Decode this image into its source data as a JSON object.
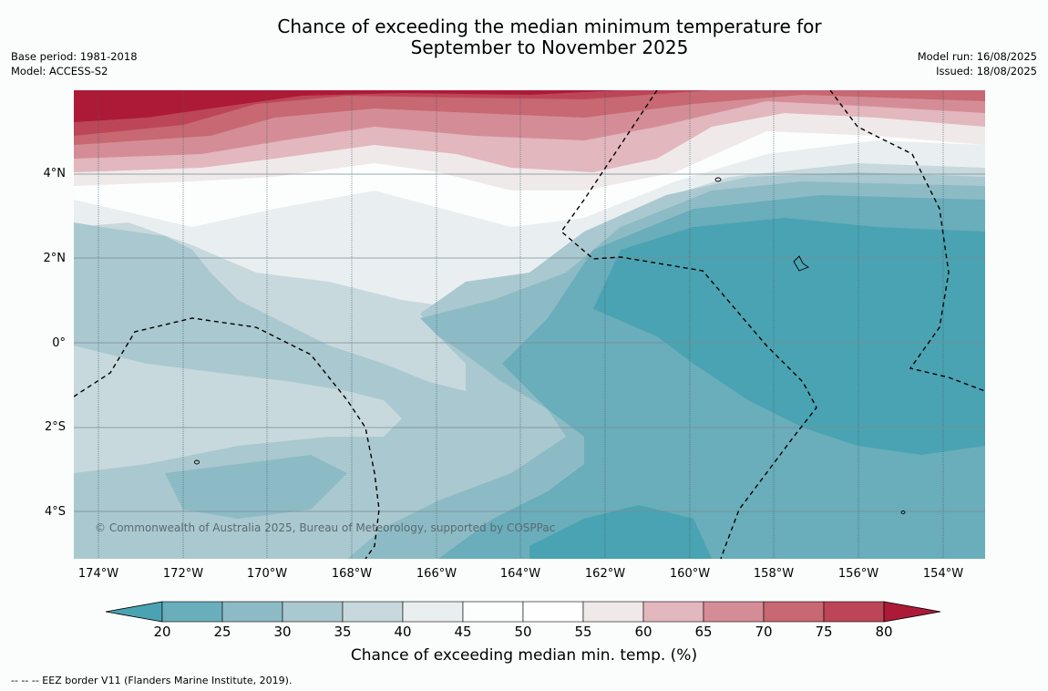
{
  "title_line1": "Chance of exceeding the median minimum temperature for",
  "title_line2": "September to November 2025",
  "base_period": "Base period: 1981-2018",
  "model": "Model: ACCESS-S2",
  "model_run": "Model run: 16/08/2025",
  "issued": "Issued: 18/08/2025",
  "lat_labels": [
    "4°N",
    "2°N",
    "0°",
    "2°S",
    "4°S"
  ],
  "lon_labels": [
    "174°W",
    "172°W",
    "170°W",
    "168°W",
    "166°W",
    "164°W",
    "162°W",
    "160°W",
    "158°W",
    "156°W",
    "154°W"
  ],
  "copyright": "© Commonwealth of Australia 2025, Bureau of Meteorology, supported by COSPPac",
  "colorbar": {
    "ticks": [
      "20",
      "25",
      "30",
      "35",
      "40",
      "45",
      "50",
      "55",
      "60",
      "65",
      "70",
      "75",
      "80"
    ],
    "colors": [
      "#4aa3b2",
      "#6aadbb",
      "#8dbbc5",
      "#aac8cf",
      "#c7d9dd",
      "#e9eff1",
      "#fcfefe",
      "#fefefe",
      "#efe9ea",
      "#e2b7bd",
      "#d48d96",
      "#c76872",
      "#bc4657",
      "#ad1a37"
    ],
    "label": "Chance of exceeding median min. temp. (%)"
  },
  "footnote": "-- -- -- EEZ border V11 (Flanders Marine Institute, 2019)."
}
